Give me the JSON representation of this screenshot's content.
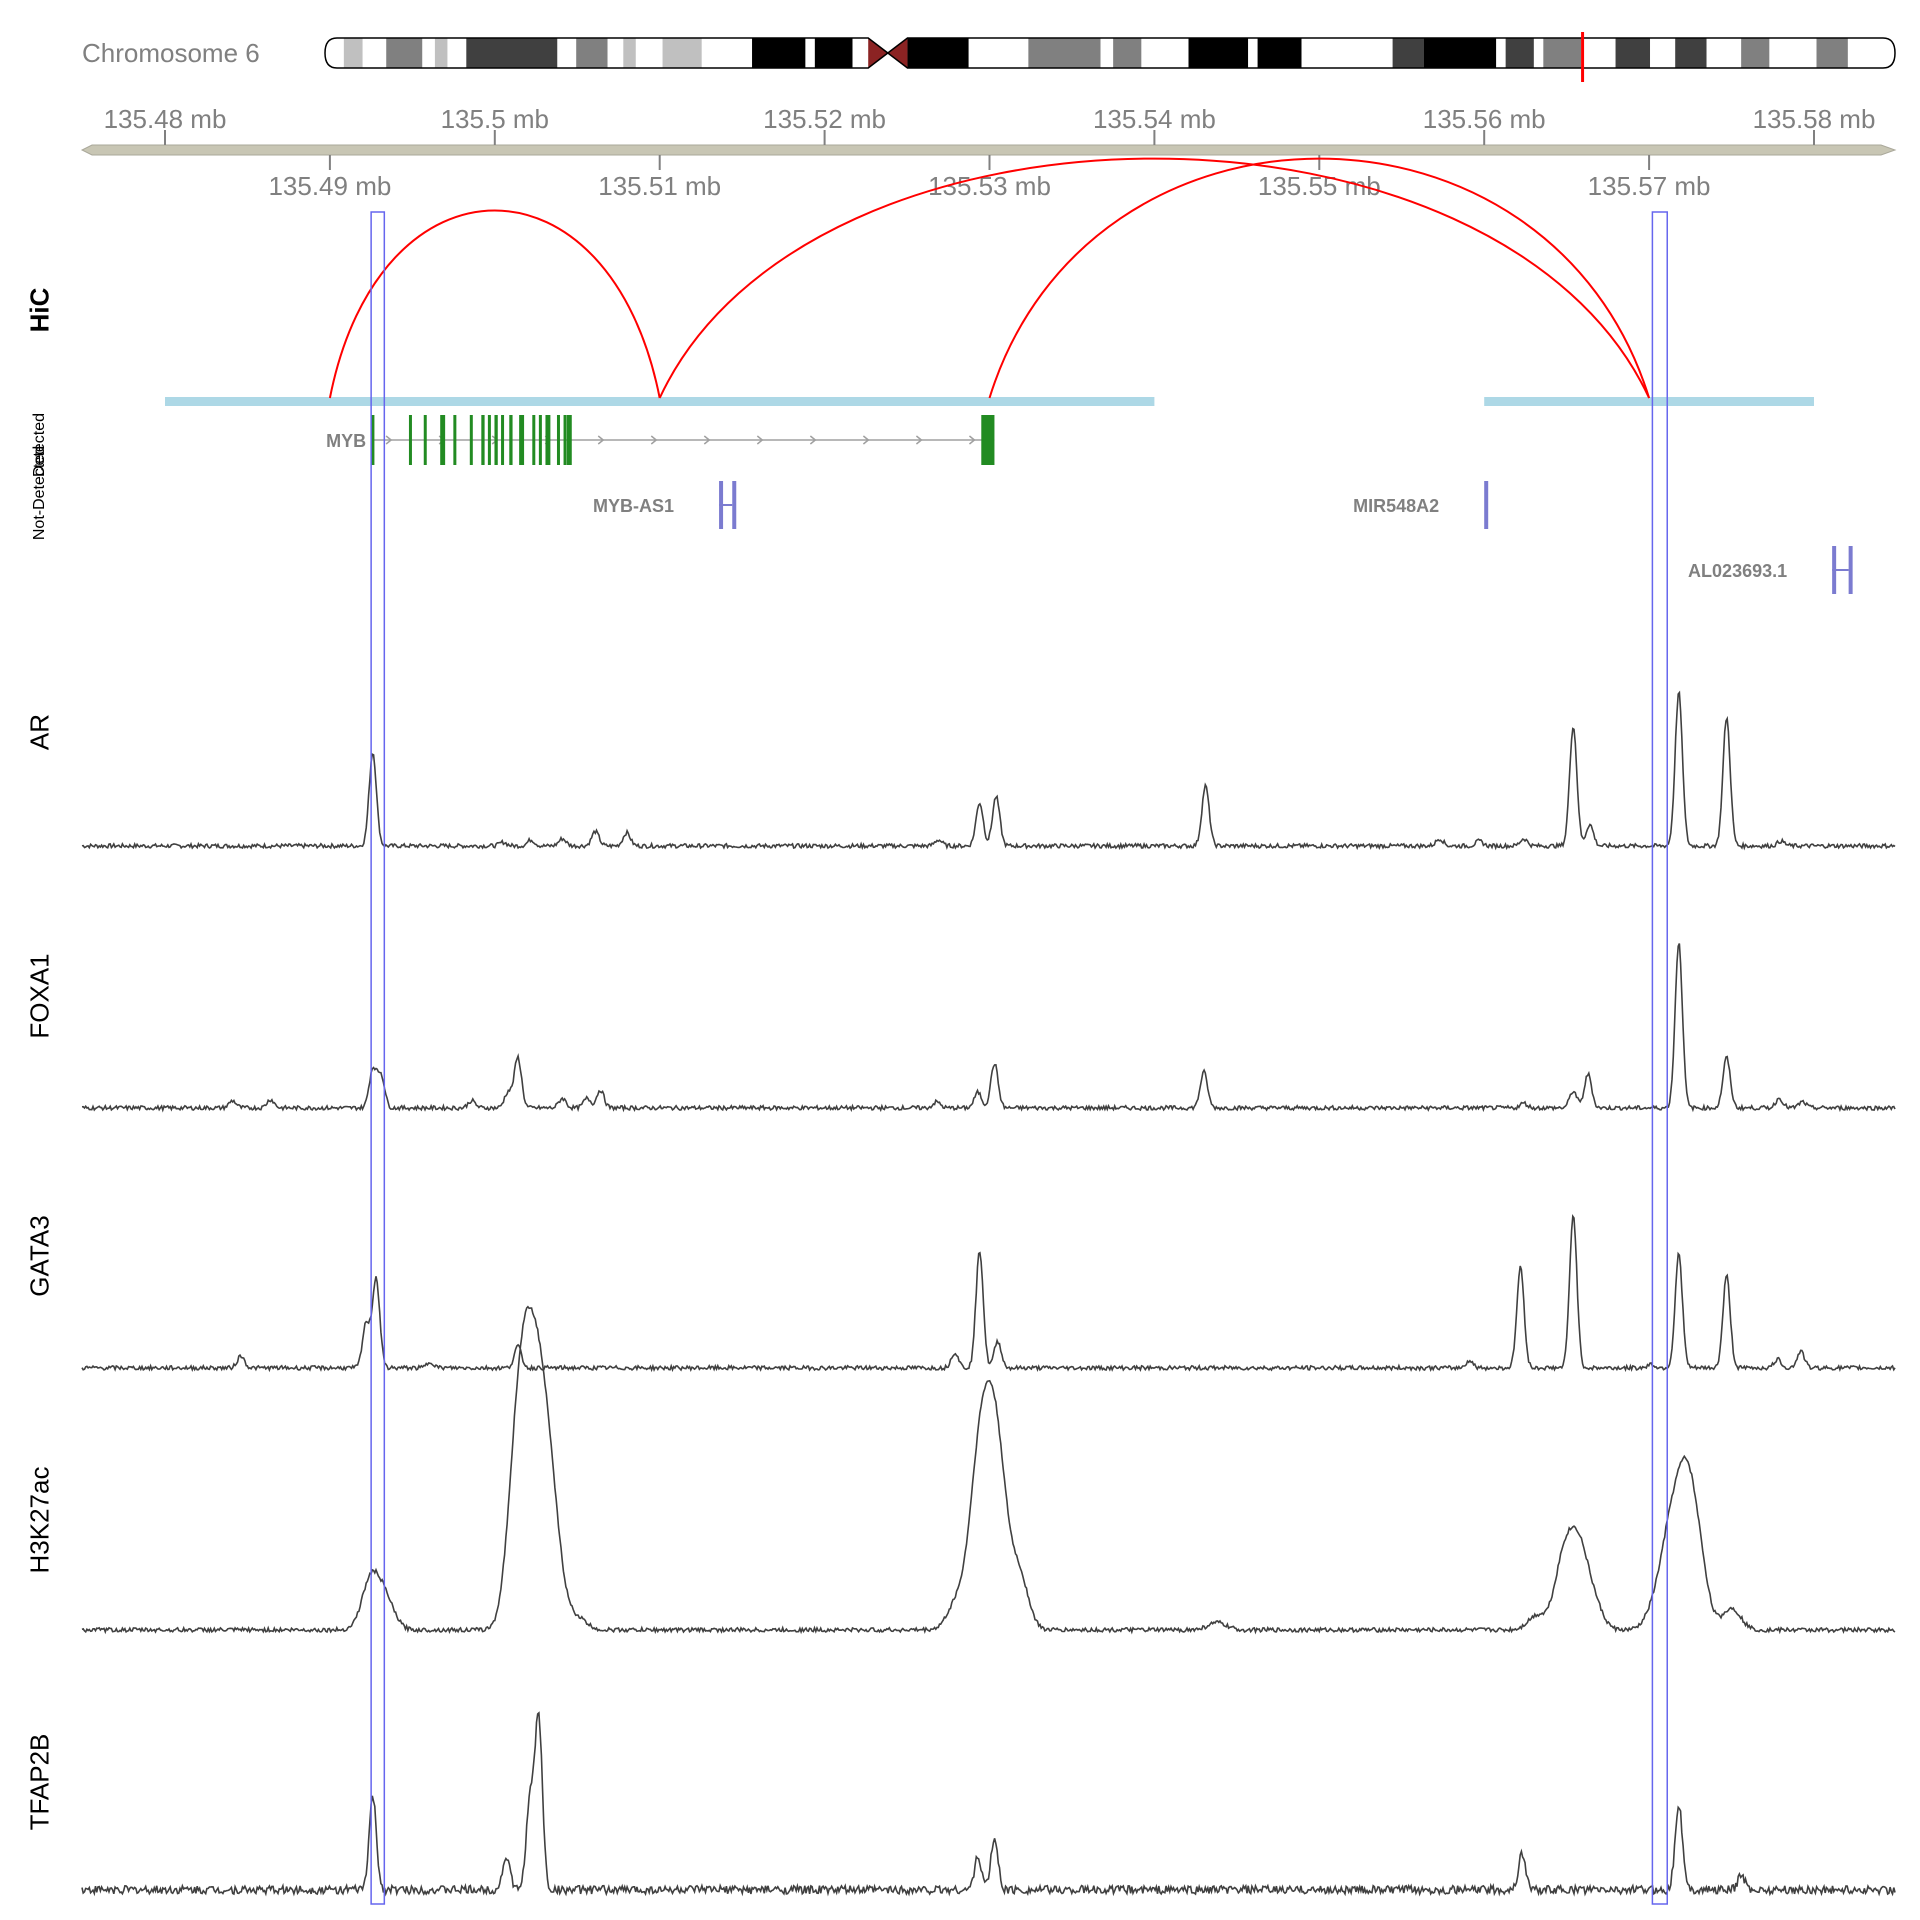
{
  "chromosome": {
    "label": "Chromosome 6",
    "highlight_color": "#ff0000",
    "bands": [
      {
        "start": 0.0,
        "end": 0.012,
        "color": "#ffffff"
      },
      {
        "start": 0.012,
        "end": 0.024,
        "color": "#c0c0c0"
      },
      {
        "start": 0.024,
        "end": 0.039,
        "color": "#ffffff"
      },
      {
        "start": 0.039,
        "end": 0.062,
        "color": "#808080"
      },
      {
        "start": 0.062,
        "end": 0.07,
        "color": "#ffffff"
      },
      {
        "start": 0.07,
        "end": 0.078,
        "color": "#c0c0c0"
      },
      {
        "start": 0.078,
        "end": 0.09,
        "color": "#ffffff"
      },
      {
        "start": 0.09,
        "end": 0.148,
        "color": "#404040"
      },
      {
        "start": 0.148,
        "end": 0.16,
        "color": "#ffffff"
      },
      {
        "start": 0.16,
        "end": 0.18,
        "color": "#808080"
      },
      {
        "start": 0.18,
        "end": 0.19,
        "color": "#ffffff"
      },
      {
        "start": 0.19,
        "end": 0.198,
        "color": "#c0c0c0"
      },
      {
        "start": 0.198,
        "end": 0.215,
        "color": "#ffffff"
      },
      {
        "start": 0.215,
        "end": 0.24,
        "color": "#c0c0c0"
      },
      {
        "start": 0.24,
        "end": 0.272,
        "color": "#ffffff"
      },
      {
        "start": 0.272,
        "end": 0.306,
        "color": "#000000"
      },
      {
        "start": 0.306,
        "end": 0.312,
        "color": "#ffffff"
      },
      {
        "start": 0.312,
        "end": 0.336,
        "color": "#000000"
      },
      {
        "start": 0.336,
        "end": 0.346,
        "color": "#ffffff"
      },
      {
        "start": 0.371,
        "end": 0.41,
        "color": "#000000"
      },
      {
        "start": 0.41,
        "end": 0.448,
        "color": "#ffffff"
      },
      {
        "start": 0.448,
        "end": 0.494,
        "color": "#808080"
      },
      {
        "start": 0.494,
        "end": 0.502,
        "color": "#ffffff"
      },
      {
        "start": 0.502,
        "end": 0.52,
        "color": "#808080"
      },
      {
        "start": 0.52,
        "end": 0.55,
        "color": "#ffffff"
      },
      {
        "start": 0.55,
        "end": 0.588,
        "color": "#000000"
      },
      {
        "start": 0.588,
        "end": 0.594,
        "color": "#ffffff"
      },
      {
        "start": 0.594,
        "end": 0.622,
        "color": "#000000"
      },
      {
        "start": 0.622,
        "end": 0.68,
        "color": "#ffffff"
      },
      {
        "start": 0.68,
        "end": 0.7,
        "color": "#404040"
      },
      {
        "start": 0.7,
        "end": 0.746,
        "color": "#000000"
      },
      {
        "start": 0.746,
        "end": 0.752,
        "color": "#ffffff"
      },
      {
        "start": 0.752,
        "end": 0.77,
        "color": "#404040"
      },
      {
        "start": 0.77,
        "end": 0.776,
        "color": "#ffffff"
      },
      {
        "start": 0.776,
        "end": 0.8,
        "color": "#808080"
      },
      {
        "start": 0.8,
        "end": 0.822,
        "color": "#ffffff"
      },
      {
        "start": 0.822,
        "end": 0.844,
        "color": "#404040"
      },
      {
        "start": 0.844,
        "end": 0.86,
        "color": "#ffffff"
      },
      {
        "start": 0.86,
        "end": 0.88,
        "color": "#404040"
      },
      {
        "start": 0.88,
        "end": 0.902,
        "color": "#ffffff"
      },
      {
        "start": 0.902,
        "end": 0.92,
        "color": "#808080"
      },
      {
        "start": 0.92,
        "end": 0.95,
        "color": "#ffffff"
      },
      {
        "start": 0.95,
        "end": 0.97,
        "color": "#808080"
      },
      {
        "start": 0.97,
        "end": 1.0,
        "color": "#ffffff"
      }
    ],
    "centromere_color": "#8b2323",
    "centromere_start": 0.346,
    "centromere_end": 0.371,
    "highlight_position": 0.801
  },
  "axis": {
    "start_mb": 135.476,
    "end_mb": 135.584,
    "color": "#c8c6b4",
    "top_ticks": [
      "135.48 mb",
      "135.5 mb",
      "135.52 mb",
      "135.54 mb",
      "135.56 mb",
      "135.58 mb"
    ],
    "bottom_ticks": [
      "135.49 mb",
      "135.51 mb",
      "135.53 mb",
      "135.55 mb",
      "135.57 mb"
    ],
    "top_tick_values": [
      135.48,
      135.5,
      135.52,
      135.54,
      135.56,
      135.58
    ],
    "bottom_tick_values": [
      135.49,
      135.51,
      135.53,
      135.55,
      135.57
    ]
  },
  "highlights": [
    {
      "start": 135.4925,
      "end": 135.4933
    },
    {
      "start": 135.5702,
      "end": 135.5711
    }
  ],
  "highlight_color": "#6666ee",
  "tracks": {
    "hic": {
      "label": "HiC",
      "arc_color": "#ff0000",
      "anchor_color": "#add8e6",
      "anchors": [
        {
          "start": 135.48,
          "end": 135.54
        },
        {
          "start": 135.56,
          "end": 135.58
        }
      ],
      "arcs": [
        {
          "from": 135.49,
          "to": 135.51
        },
        {
          "from": 135.51,
          "to": 135.57
        },
        {
          "from": 135.53,
          "to": 135.57
        }
      ]
    },
    "genes": {
      "label": "Not-Detected",
      "label_overlap": "Detected",
      "exon_color": "#228b22",
      "nc_color": "#7b7bd0",
      "intron_color": "#a0a0a0",
      "items": [
        {
          "name": "MYB",
          "start": 135.4925,
          "end": 135.5303,
          "row": 0
        },
        {
          "name": "MYB-AS1",
          "start": 135.5136,
          "end": 135.5144,
          "row": 1
        },
        {
          "name": "MIR548A2",
          "start": 135.56,
          "end": 135.5601,
          "row": 1
        },
        {
          "name": "AL023693.1",
          "start": 135.5811,
          "end": 135.5821,
          "row": 2
        }
      ]
    },
    "signals": [
      {
        "label": "AR",
        "color": "#404040",
        "peaks": [
          [
            135.4926,
            0.78
          ],
          [
            135.5005,
            0.03
          ],
          [
            135.5022,
            0.05
          ],
          [
            135.5041,
            0.06
          ],
          [
            135.5061,
            0.12
          ],
          [
            135.508,
            0.11
          ],
          [
            135.5269,
            0.05
          ],
          [
            135.5294,
            0.36
          ],
          [
            135.5304,
            0.41
          ],
          [
            135.5431,
            0.5
          ],
          [
            135.5573,
            0.06
          ],
          [
            135.5597,
            0.04
          ],
          [
            135.5624,
            0.06
          ],
          [
            135.5654,
            1.0
          ],
          [
            135.5664,
            0.18
          ],
          [
            135.5718,
            1.28
          ],
          [
            135.5747,
            1.07
          ],
          [
            135.578,
            0.04
          ]
        ]
      },
      {
        "label": "FOXA1",
        "color": "#404040",
        "peaks": [
          [
            135.4841,
            0.06
          ],
          [
            135.4864,
            0.07
          ],
          [
            135.4926,
            0.32
          ],
          [
            135.4931,
            0.27
          ],
          [
            135.4986,
            0.06
          ],
          [
            135.5008,
            0.13
          ],
          [
            135.5014,
            0.42
          ],
          [
            135.5041,
            0.08
          ],
          [
            135.5056,
            0.08
          ],
          [
            135.5064,
            0.15
          ],
          [
            135.5268,
            0.05
          ],
          [
            135.5293,
            0.13
          ],
          [
            135.5303,
            0.37
          ],
          [
            135.543,
            0.3
          ],
          [
            135.5624,
            0.04
          ],
          [
            135.5654,
            0.14
          ],
          [
            135.5663,
            0.28
          ],
          [
            135.5718,
            1.38
          ],
          [
            135.5747,
            0.42
          ],
          [
            135.5779,
            0.08
          ],
          [
            135.5793,
            0.05
          ]
        ]
      },
      {
        "label": "GATA3",
        "color": "#404040",
        "peaks": [
          [
            135.4846,
            0.1
          ],
          [
            135.4922,
            0.37
          ],
          [
            135.4928,
            0.75
          ],
          [
            135.4961,
            0.05
          ],
          [
            135.5014,
            0.18
          ],
          [
            135.5279,
            0.13
          ],
          [
            135.5294,
            0.98
          ],
          [
            135.5305,
            0.22
          ],
          [
            135.5591,
            0.06
          ],
          [
            135.5622,
            0.84
          ],
          [
            135.5654,
            1.28
          ],
          [
            135.5701,
            0.03
          ],
          [
            135.5718,
            0.95
          ],
          [
            135.5747,
            0.77
          ],
          [
            135.5778,
            0.07
          ],
          [
            135.5792,
            0.14
          ]
        ]
      },
      {
        "label": "H3K27ac",
        "color": "#404040",
        "peaks": [
          [
            135.4925,
            0.42
          ],
          [
            135.4934,
            0.22
          ],
          [
            135.5012,
            0.95
          ],
          [
            135.5018,
            1.25
          ],
          [
            135.5023,
            1.0
          ],
          [
            135.5029,
            1.2
          ],
          [
            135.5036,
            0.65
          ],
          [
            135.505,
            0.1
          ],
          [
            135.528,
            0.22
          ],
          [
            135.5292,
            0.95
          ],
          [
            135.5299,
            1.18
          ],
          [
            135.5306,
            1.05
          ],
          [
            135.5318,
            0.45
          ],
          [
            135.5438,
            0.06
          ],
          [
            135.5632,
            0.12
          ],
          [
            135.5648,
            0.55
          ],
          [
            135.5657,
            0.62
          ],
          [
            135.5666,
            0.22
          ],
          [
            135.5704,
            0.2
          ],
          [
            135.5713,
            0.72
          ],
          [
            135.5722,
            1.05
          ],
          [
            135.573,
            0.55
          ],
          [
            135.575,
            0.18
          ]
        ]
      },
      {
        "label": "TFAP2B",
        "color": "#404040",
        "peaks": [
          [
            135.4926,
            0.77
          ],
          [
            135.5007,
            0.28
          ],
          [
            135.5021,
            0.67
          ],
          [
            135.5025,
            0.45
          ],
          [
            135.5027,
            1.12
          ],
          [
            135.5293,
            0.27
          ],
          [
            135.5303,
            0.42
          ],
          [
            135.5623,
            0.3
          ],
          [
            135.5718,
            0.72
          ],
          [
            135.5756,
            0.12
          ]
        ]
      }
    ]
  }
}
